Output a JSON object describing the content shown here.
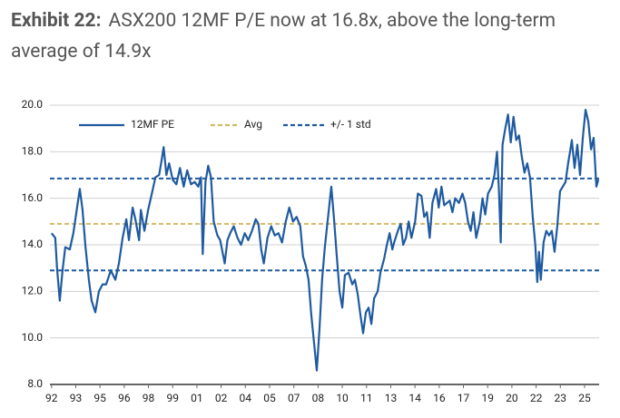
{
  "chart_data": {
    "type": "line",
    "title_label": "Exhibit 22:",
    "title": "ASX200 12MF P/E now at 16.8x, above the long-term average of 14.9x",
    "xlim": [
      1991.9,
      2025.9
    ],
    "ylim": [
      8,
      20
    ],
    "yticks": [
      {
        "value": 8,
        "label": "8.0"
      },
      {
        "value": 10,
        "label": "10.0"
      },
      {
        "value": 12,
        "label": "12.0"
      },
      {
        "value": 14,
        "label": "14.0"
      },
      {
        "value": 16,
        "label": "16.0"
      },
      {
        "value": 18,
        "label": "18.0"
      },
      {
        "value": 20,
        "label": "20.0"
      }
    ],
    "xticks": [
      {
        "value": 1992,
        "label": "92"
      },
      {
        "value": 1993.5,
        "label": "93"
      },
      {
        "value": 1995,
        "label": "95"
      },
      {
        "value": 1996.5,
        "label": "96"
      },
      {
        "value": 1998,
        "label": "98"
      },
      {
        "value": 1999.5,
        "label": "99"
      },
      {
        "value": 2001,
        "label": "01"
      },
      {
        "value": 2002.5,
        "label": "02"
      },
      {
        "value": 2004,
        "label": "04"
      },
      {
        "value": 2005.5,
        "label": "05"
      },
      {
        "value": 2007,
        "label": "07"
      },
      {
        "value": 2008.5,
        "label": "08"
      },
      {
        "value": 2010,
        "label": "10"
      },
      {
        "value": 2011.5,
        "label": "11"
      },
      {
        "value": 2013,
        "label": "13"
      },
      {
        "value": 2014.5,
        "label": "14"
      },
      {
        "value": 2016,
        "label": "16"
      },
      {
        "value": 2017.5,
        "label": "17"
      },
      {
        "value": 2019,
        "label": "19"
      },
      {
        "value": 2020.5,
        "label": "20"
      },
      {
        "value": 2022,
        "label": "22"
      },
      {
        "value": 2023.5,
        "label": "23"
      },
      {
        "value": 2025,
        "label": "25"
      }
    ],
    "grid": true,
    "legend": "top-left",
    "series": [
      {
        "name": "12MF PE",
        "color": "#1f5aa0",
        "x": [
          1992.0,
          1992.23,
          1992.34,
          1992.51,
          1992.68,
          1992.85,
          1993.13,
          1993.35,
          1993.58,
          1993.75,
          1993.92,
          1994.09,
          1994.31,
          1994.48,
          1994.71,
          1994.93,
          1995.16,
          1995.38,
          1995.67,
          1995.95,
          1996.17,
          1996.4,
          1996.63,
          1996.79,
          1997.02,
          1997.19,
          1997.42,
          1997.53,
          1997.75,
          1997.98,
          1998.21,
          1998.43,
          1998.66,
          1998.83,
          1998.94,
          1999.11,
          1999.28,
          1999.5,
          1999.73,
          1999.95,
          2000.18,
          2000.4,
          2000.63,
          2000.86,
          2001.08,
          2001.25,
          2001.36,
          2001.53,
          2001.7,
          2001.87,
          2002.04,
          2002.27,
          2002.44,
          2002.61,
          2002.72,
          2002.89,
          2003.06,
          2003.28,
          2003.51,
          2003.73,
          2003.96,
          2004.18,
          2004.41,
          2004.64,
          2004.81,
          2004.98,
          2005.14,
          2005.37,
          2005.6,
          2005.82,
          2006.05,
          2006.27,
          2006.5,
          2006.72,
          2006.95,
          2007.17,
          2007.4,
          2007.57,
          2007.74,
          2007.91,
          2008.08,
          2008.25,
          2008.42,
          2008.59,
          2008.75,
          2008.92,
          2009.15,
          2009.32,
          2009.49,
          2009.66,
          2009.83,
          2010.0,
          2010.16,
          2010.39,
          2010.62,
          2010.78,
          2010.95,
          2011.12,
          2011.29,
          2011.46,
          2011.63,
          2011.8,
          2011.97,
          2012.19,
          2012.36,
          2012.59,
          2012.76,
          2012.93,
          2013.1,
          2013.21,
          2013.44,
          2013.61,
          2013.77,
          2013.94,
          2014.11,
          2014.28,
          2014.51,
          2014.68,
          2014.9,
          2015.07,
          2015.24,
          2015.41,
          2015.58,
          2015.81,
          2015.97,
          2016.14,
          2016.31,
          2016.48,
          2016.65,
          2016.82,
          2016.99,
          2017.22,
          2017.44,
          2017.61,
          2017.78,
          2017.95,
          2018.12,
          2018.29,
          2018.51,
          2018.68,
          2018.85,
          2019.02,
          2019.25,
          2019.42,
          2019.58,
          2019.7,
          2019.81,
          2019.92,
          2020.09,
          2020.26,
          2020.43,
          2020.6,
          2020.77,
          2020.94,
          2021.11,
          2021.28,
          2021.45,
          2021.62,
          2021.79,
          2021.95,
          2022.07,
          2022.18,
          2022.29,
          2022.46,
          2022.63,
          2022.8,
          2022.97,
          2023.14,
          2023.31,
          2023.48,
          2023.65,
          2023.82,
          2023.98,
          2024.1,
          2024.21,
          2024.38,
          2024.55,
          2024.72,
          2024.89,
          2025.06,
          2025.23,
          2025.4,
          2025.56,
          2025.73,
          2025.85
        ],
        "values": [
          14.5,
          14.3,
          13.0,
          11.6,
          12.9,
          13.9,
          13.8,
          14.5,
          15.6,
          16.4,
          15.5,
          14.0,
          12.5,
          11.6,
          11.1,
          12.0,
          12.3,
          12.3,
          12.9,
          12.5,
          13.2,
          14.3,
          15.1,
          14.2,
          15.6,
          15.1,
          14.2,
          15.5,
          14.6,
          15.5,
          16.2,
          16.9,
          17.0,
          17.7,
          18.2,
          17.0,
          17.5,
          16.8,
          16.6,
          17.3,
          16.5,
          17.2,
          16.6,
          16.7,
          16.5,
          16.9,
          13.6,
          16.7,
          17.4,
          16.9,
          15.0,
          14.4,
          14.2,
          13.6,
          13.2,
          14.2,
          14.5,
          14.8,
          14.3,
          14.0,
          14.5,
          14.2,
          14.6,
          15.1,
          14.9,
          13.8,
          13.2,
          14.3,
          14.8,
          14.4,
          14.5,
          14.1,
          15.0,
          15.6,
          15.0,
          15.2,
          14.8,
          13.5,
          13.1,
          12.5,
          11.0,
          9.8,
          8.6,
          10.4,
          12.5,
          13.9,
          15.4,
          16.5,
          15.1,
          13.5,
          12.0,
          11.3,
          12.7,
          12.8,
          12.3,
          12.5,
          11.9,
          11.0,
          10.2,
          11.1,
          11.3,
          10.6,
          11.7,
          12.0,
          12.8,
          13.4,
          14.0,
          14.5,
          13.8,
          14.1,
          14.6,
          14.9,
          14.0,
          14.3,
          15.0,
          14.3,
          15.0,
          16.2,
          16.1,
          15.2,
          15.4,
          14.3,
          15.8,
          16.4,
          15.6,
          16.5,
          15.7,
          15.8,
          15.9,
          15.4,
          16.0,
          15.8,
          16.2,
          15.8,
          15.0,
          14.6,
          15.4,
          14.3,
          15.0,
          16.0,
          15.3,
          16.2,
          16.5,
          17.0,
          18.0,
          16.3,
          14.1,
          18.3,
          19.0,
          19.6,
          18.4,
          19.5,
          18.5,
          18.7,
          17.8,
          17.1,
          17.5,
          16.9,
          15.2,
          14.0,
          12.4,
          13.7,
          12.5,
          14.1,
          14.6,
          14.4,
          14.6,
          13.7,
          14.8,
          16.3,
          16.5,
          16.7,
          17.5,
          18.0,
          18.5,
          17.3,
          18.3,
          17.0,
          18.6,
          19.8,
          19.3,
          18.1,
          18.6,
          16.5,
          16.8
        ]
      }
    ],
    "hlines": [
      {
        "name": "Avg",
        "color": "#d4b96a",
        "values": [
          14.9
        ]
      },
      {
        "name": "+/- 1 std",
        "color": "#1f5aa0",
        "values": [
          16.85,
          12.9
        ]
      }
    ]
  }
}
